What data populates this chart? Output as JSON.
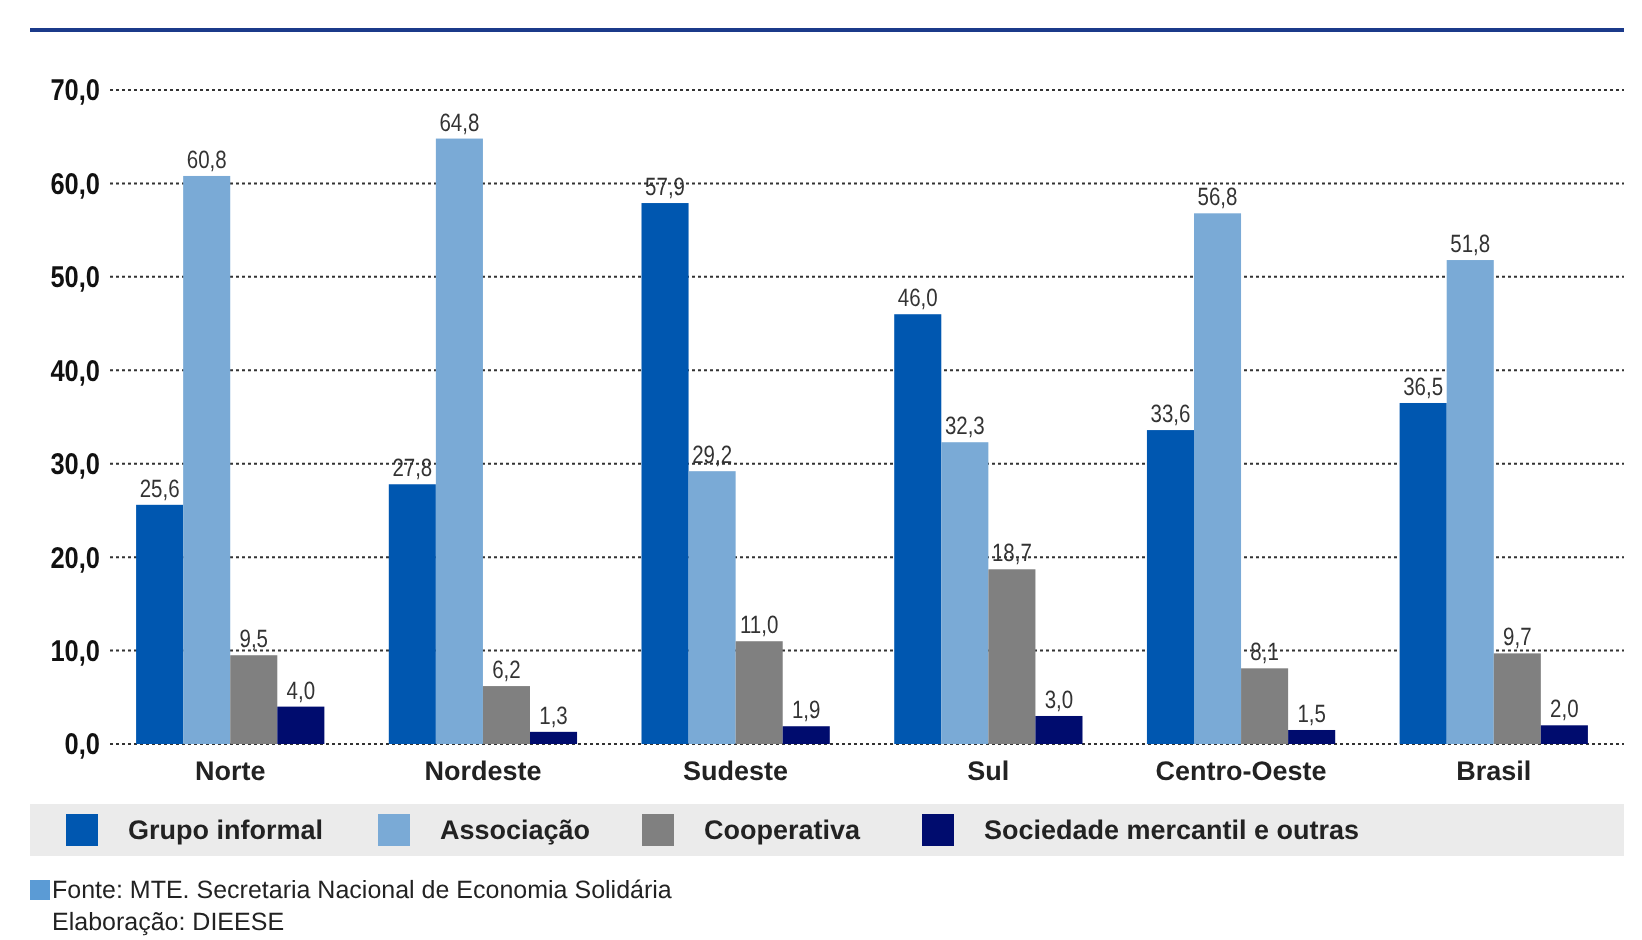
{
  "chart_data": {
    "type": "bar",
    "categories": [
      "Norte",
      "Nordeste",
      "Sudeste",
      "Sul",
      "Centro-Oeste",
      "Brasil"
    ],
    "series": [
      {
        "name": "Grupo informal",
        "color": "#0057b0",
        "values": [
          25.6,
          27.8,
          57.9,
          46.0,
          33.6,
          36.5
        ],
        "value_labels": [
          "25,6",
          "27,8",
          "57,9",
          "46,0",
          "33,6",
          "36,5"
        ]
      },
      {
        "name": "Associação",
        "color": "#7aaad6",
        "values": [
          60.8,
          64.8,
          29.2,
          32.3,
          56.8,
          51.8
        ],
        "value_labels": [
          "60,8",
          "64,8",
          "29,2",
          "32,3",
          "56,8",
          "51,8"
        ]
      },
      {
        "name": "Cooperativa",
        "color": "#808080",
        "values": [
          9.5,
          6.2,
          11.0,
          18.7,
          8.1,
          9.7
        ],
        "value_labels": [
          "9,5",
          "6,2",
          "11,0",
          "18,7",
          "8,1",
          "9,7"
        ]
      },
      {
        "name": "Sociedade mercantil e outras",
        "color": "#000c6e",
        "values": [
          4.0,
          1.3,
          1.9,
          3.0,
          1.5,
          2.0
        ],
        "value_labels": [
          "4,0",
          "1,3",
          "1,9",
          "3,0",
          "1,5",
          "2,0"
        ]
      }
    ],
    "ylim": [
      0,
      70
    ],
    "yticks": [
      {
        "value": 0,
        "label": "0,0"
      },
      {
        "value": 10,
        "label": "10,0"
      },
      {
        "value": 20,
        "label": "20,0"
      },
      {
        "value": 30,
        "label": "30,0"
      },
      {
        "value": 40,
        "label": "40,0"
      },
      {
        "value": 50,
        "label": "50,0"
      },
      {
        "value": 60,
        "label": "60,0"
      },
      {
        "value": 70,
        "label": "70,0"
      }
    ],
    "grid": "y",
    "legend": "bottom",
    "annotations": [
      "Fonte: MTE. Secretaria Nacional de Economia Solidária",
      "Elaboração: DIEESE"
    ]
  }
}
